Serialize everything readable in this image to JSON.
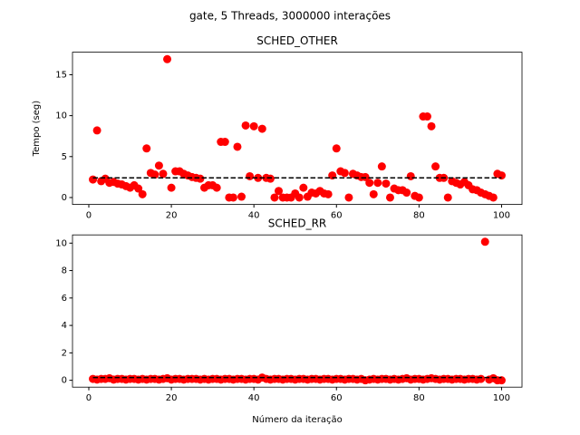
{
  "figure_title": "gate, 5 Threads, 3000000 interações",
  "chart_data": [
    {
      "type": "scatter",
      "title": "SCHED_OTHER",
      "y_label": "Tempo (seg)",
      "color": "#ff0000",
      "x": [
        1,
        2,
        3,
        4,
        5,
        6,
        7,
        8,
        9,
        10,
        11,
        12,
        13,
        14,
        15,
        16,
        17,
        18,
        19,
        20,
        21,
        22,
        23,
        24,
        25,
        26,
        27,
        28,
        29,
        30,
        31,
        32,
        33,
        34,
        35,
        36,
        37,
        38,
        39,
        40,
        41,
        42,
        43,
        44,
        45,
        46,
        47,
        48,
        49,
        50,
        51,
        52,
        53,
        54,
        55,
        56,
        57,
        58,
        59,
        60,
        61,
        62,
        63,
        64,
        65,
        66,
        67,
        68,
        69,
        70,
        71,
        72,
        73,
        74,
        75,
        76,
        77,
        78,
        79,
        80,
        81,
        82,
        83,
        84,
        85,
        86,
        87,
        88,
        89,
        90,
        91,
        92,
        93,
        94,
        95,
        96,
        97,
        98,
        99,
        100
      ],
      "values": [
        2.2,
        8.2,
        2.0,
        2.3,
        1.8,
        1.9,
        1.7,
        1.6,
        1.4,
        1.2,
        1.5,
        1.1,
        0.4,
        6.0,
        3.0,
        2.8,
        3.9,
        2.9,
        16.9,
        1.2,
        3.2,
        3.2,
        2.9,
        2.7,
        2.5,
        2.4,
        2.3,
        1.2,
        1.5,
        1.5,
        1.2,
        6.8,
        6.8,
        0.0,
        0.0,
        6.2,
        0.1,
        8.8,
        2.6,
        8.7,
        2.4,
        8.4,
        2.4,
        2.3,
        0.0,
        0.8,
        0.0,
        0.0,
        0.0,
        0.5,
        0.0,
        1.2,
        0.1,
        0.6,
        0.5,
        0.8,
        0.5,
        0.4,
        2.7,
        6.0,
        3.2,
        3.0,
        0.0,
        2.9,
        2.7,
        2.5,
        2.5,
        1.8,
        0.4,
        1.8,
        3.8,
        1.7,
        0.0,
        1.1,
        0.9,
        0.9,
        0.6,
        2.6,
        0.2,
        0.0,
        9.9,
        9.9,
        8.7,
        3.8,
        2.4,
        2.4,
        0.0,
        2.0,
        1.8,
        1.6,
        1.9,
        1.5,
        1.0,
        0.9,
        0.6,
        0.4,
        0.2,
        0.0,
        2.9,
        2.7
      ],
      "mean_line": {
        "value": 2.4,
        "color": "#000000",
        "dashed": true
      },
      "xlim": [
        -3.95,
        104.95
      ],
      "xticks": [
        0,
        20,
        40,
        60,
        80,
        100
      ],
      "ylim": [
        -0.845,
        17.75
      ],
      "yticks": [
        0,
        5,
        10,
        15
      ]
    },
    {
      "type": "scatter",
      "title": "SCHED_RR",
      "x_label": "Número da iteração",
      "color": "#ff0000",
      "x": [
        1,
        2,
        3,
        4,
        5,
        6,
        7,
        8,
        9,
        10,
        11,
        12,
        13,
        14,
        15,
        16,
        17,
        18,
        19,
        20,
        21,
        22,
        23,
        24,
        25,
        26,
        27,
        28,
        29,
        30,
        31,
        32,
        33,
        34,
        35,
        36,
        37,
        38,
        39,
        40,
        41,
        42,
        43,
        44,
        45,
        46,
        47,
        48,
        49,
        50,
        51,
        52,
        53,
        54,
        55,
        56,
        57,
        58,
        59,
        60,
        61,
        62,
        63,
        64,
        65,
        66,
        67,
        68,
        69,
        70,
        71,
        72,
        73,
        74,
        75,
        76,
        77,
        78,
        79,
        80,
        81,
        82,
        83,
        84,
        85,
        86,
        87,
        88,
        89,
        90,
        91,
        92,
        93,
        94,
        95,
        96,
        97,
        98,
        99,
        100
      ],
      "values": [
        0.1,
        0.05,
        0.1,
        0.1,
        0.15,
        0.05,
        0.1,
        0.1,
        0.05,
        0.1,
        0.1,
        0.05,
        0.1,
        0.05,
        0.1,
        0.1,
        0.05,
        0.1,
        0.15,
        0.05,
        0.1,
        0.1,
        0.05,
        0.1,
        0.1,
        0.1,
        0.05,
        0.1,
        0.05,
        0.1,
        0.1,
        0.05,
        0.1,
        0.1,
        0.05,
        0.1,
        0.1,
        0.05,
        0.1,
        0.1,
        0.05,
        0.2,
        0.1,
        0.05,
        0.1,
        0.1,
        0.05,
        0.1,
        0.1,
        0.05,
        0.1,
        0.1,
        0.05,
        0.1,
        0.1,
        0.05,
        0.1,
        0.1,
        0.05,
        0.1,
        0.1,
        0.05,
        0.1,
        0.1,
        0.05,
        0.1,
        0.0,
        0.05,
        0.1,
        0.05,
        0.1,
        0.1,
        0.05,
        0.1,
        0.05,
        0.1,
        0.15,
        0.05,
        0.1,
        0.1,
        0.05,
        0.1,
        0.15,
        0.1,
        0.05,
        0.1,
        0.1,
        0.05,
        0.1,
        0.1,
        0.05,
        0.1,
        0.1,
        0.05,
        0.1,
        10.1,
        0.05,
        0.15,
        0.0,
        0.0
      ],
      "mean_line": {
        "value": 0.2,
        "color": "#000000",
        "dashed": true
      },
      "xlim": [
        -3.95,
        104.95
      ],
      "xticks": [
        0,
        20,
        40,
        60,
        80,
        100
      ],
      "ylim": [
        -0.5,
        10.6
      ],
      "yticks": [
        0,
        2,
        4,
        6,
        8,
        10
      ]
    }
  ]
}
